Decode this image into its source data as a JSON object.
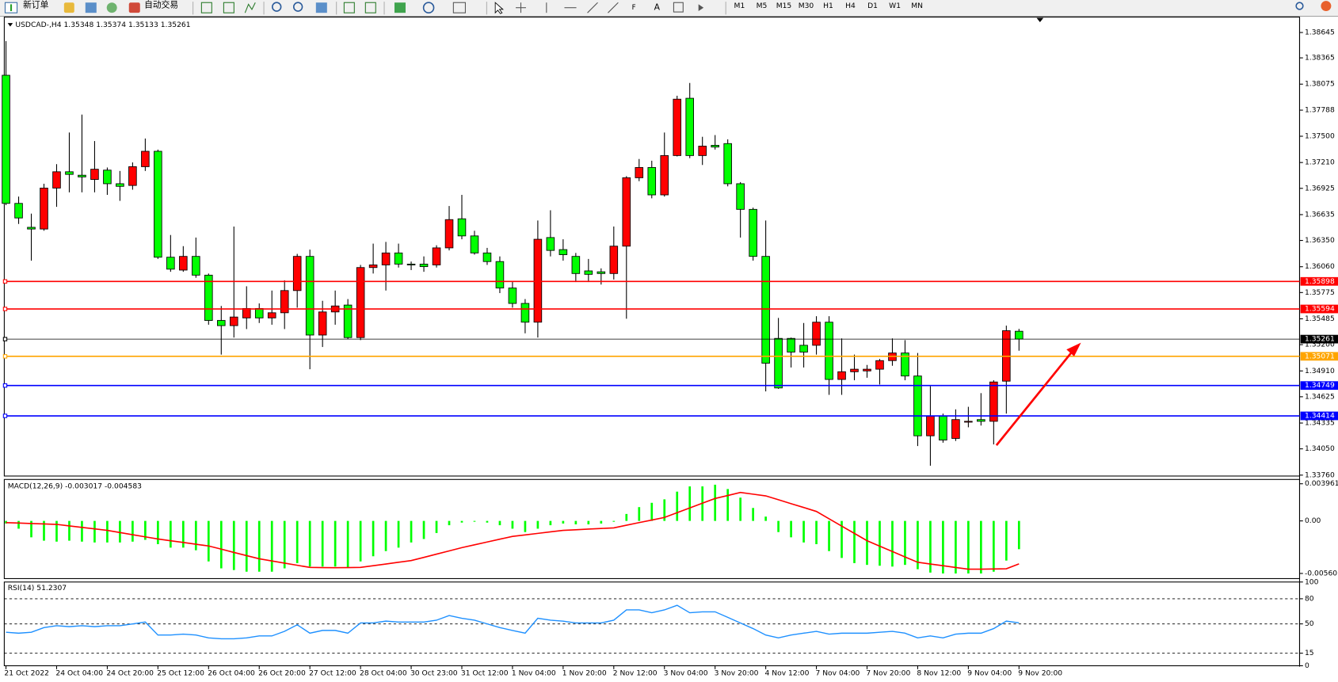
{
  "toolbar": {
    "new_order": "新订单",
    "auto_trading": "自动交易",
    "timeframes": [
      "M1",
      "M5",
      "M15",
      "M30",
      "H1",
      "H4",
      "D1",
      "W1",
      "MN"
    ]
  },
  "chart_data": [
    {
      "type": "candlestick",
      "title": "USDCAD-,H4 1.35348 1.35374 1.35133 1.35261",
      "categories": [
        "21 Oct 2022",
        null,
        null,
        null,
        "24 Oct 04:00",
        null,
        null,
        null,
        "24 Oct 20:00",
        null,
        null,
        null,
        "25 Oct 12:00",
        null,
        null,
        null,
        "26 Oct 04:00",
        null,
        null,
        null,
        "26 Oct 20:00",
        null,
        null,
        null,
        "27 Oct 12:00",
        null,
        null,
        null,
        "28 Oct 04:00",
        null,
        null,
        null,
        "30 Oct 23:00",
        null,
        null,
        null,
        "31 Oct 12:00",
        null,
        null,
        null,
        "1 Nov 04:00",
        null,
        null,
        null,
        "1 Nov 20:00",
        null,
        null,
        null,
        "2 Nov 12:00",
        null,
        null,
        null,
        "3 Nov 04:00",
        null,
        null,
        null,
        "3 Nov 20:00",
        null,
        null,
        null,
        "4 Nov 12:00",
        null,
        null,
        null,
        "7 Nov 04:00",
        null,
        null,
        null,
        "7 Nov 20:00",
        null,
        null,
        null,
        "8 Nov 12:00",
        null,
        null,
        null,
        "9 Nov 04:00",
        null,
        null,
        null,
        "9 Nov 20:00"
      ],
      "open": [
        1.38173,
        1.36759,
        1.36495,
        1.36476,
        1.36928,
        1.37108,
        1.3707,
        1.37023,
        1.37126,
        1.36976,
        1.36957,
        1.37164,
        1.37334,
        1.36165,
        1.36023,
        1.36174,
        1.35967,
        1.35467,
        1.3541,
        1.35495,
        1.35599,
        1.35495,
        1.35552,
        1.35797,
        1.36174,
        1.35306,
        1.35561,
        1.35637,
        1.35278,
        1.36051,
        1.3608,
        1.36212,
        1.36089,
        1.36089,
        1.3608,
        1.36268,
        1.36589,
        1.364,
        1.36212,
        1.36117,
        1.35825,
        1.35655,
        1.35448,
        1.36382,
        1.36249,
        1.36174,
        1.36014,
        1.36004,
        1.35985,
        1.36287,
        1.37042,
        1.37155,
        1.36853,
        1.37287,
        1.37919,
        1.37287,
        1.374,
        1.37419,
        1.36976,
        1.36693,
        1.36174,
        1.35269,
        1.35269,
        1.35193,
        1.35193,
        1.35448,
        1.34816,
        1.34901,
        1.3491,
        1.34929,
        1.35024,
        1.35108,
        1.34854,
        1.34194,
        1.34411,
        1.34165,
        1.34345,
        1.34373,
        1.34354,
        1.34797,
        1.35348
      ],
      "high": [
        1.3855,
        1.36834,
        1.36646,
        1.36976,
        1.37192,
        1.37541,
        1.37739,
        1.37447,
        1.37155,
        1.37117,
        1.37211,
        1.37475,
        1.37353,
        1.3641,
        1.36287,
        1.36382,
        1.35985,
        1.35627,
        1.36504,
        1.35844,
        1.35655,
        1.35797,
        1.3591,
        1.36202,
        1.36249,
        1.35684,
        1.35797,
        1.35703,
        1.3608,
        1.36315,
        1.36334,
        1.36315,
        1.36117,
        1.36174,
        1.36297,
        1.3673,
        1.36853,
        1.36457,
        1.36268,
        1.36174,
        1.35891,
        1.35703,
        1.3657,
        1.36683,
        1.36363,
        1.36212,
        1.36146,
        1.36042,
        1.36504,
        1.3706,
        1.37249,
        1.3723,
        1.37541,
        1.37947,
        1.38088,
        1.37494,
        1.37513,
        1.37466,
        1.36994,
        1.36712,
        1.3657,
        1.35495,
        1.35278,
        1.35439,
        1.35514,
        1.35514,
        1.35269,
        1.3509,
        1.34976,
        1.35042,
        1.35269,
        1.3525,
        1.35108,
        1.34741,
        1.34439,
        1.34486,
        1.34514,
        1.34665,
        1.34807,
        1.3541,
        1.35374
      ],
      "low": [
        1.3674,
        1.36532,
        1.36127,
        1.36457,
        1.36721,
        1.36881,
        1.36881,
        1.36881,
        1.36853,
        1.36787,
        1.3691,
        1.37117,
        1.36146,
        1.36004,
        1.36004,
        1.35938,
        1.3542,
        1.3509,
        1.35278,
        1.35372,
        1.35439,
        1.3542,
        1.35372,
        1.35608,
        1.34929,
        1.35174,
        1.3542,
        1.35259,
        1.3525,
        1.35985,
        1.35797,
        1.36051,
        1.36023,
        1.36004,
        1.36051,
        1.3624,
        1.36363,
        1.36193,
        1.3608,
        1.35769,
        1.35608,
        1.35325,
        1.35278,
        1.36174,
        1.36127,
        1.35891,
        1.35891,
        1.35863,
        1.35919,
        1.35486,
        1.37004,
        1.36815,
        1.36834,
        1.37277,
        1.37258,
        1.37183,
        1.37353,
        1.36947,
        1.36382,
        1.36127,
        1.34684,
        1.34712,
        1.34948,
        1.34948,
        1.3509,
        1.34646,
        1.34646,
        1.34807,
        1.34835,
        1.3476,
        1.34967,
        1.34807,
        1.34081,
        1.33864,
        1.34118,
        1.34137,
        1.34288,
        1.34307,
        1.34099,
        1.34439,
        1.35133
      ],
      "close": [
        1.36759,
        1.36598,
        1.36476,
        1.36928,
        1.37108,
        1.37079,
        1.37051,
        1.37136,
        1.36976,
        1.36947,
        1.37164,
        1.37334,
        1.36165,
        1.36033,
        1.36174,
        1.35967,
        1.35467,
        1.3541,
        1.35505,
        1.35599,
        1.35495,
        1.35552,
        1.35797,
        1.36174,
        1.35306,
        1.35561,
        1.35627,
        1.35278,
        1.36051,
        1.3608,
        1.36212,
        1.36089,
        1.3608,
        1.36061,
        1.36268,
        1.3658,
        1.364,
        1.36212,
        1.36117,
        1.35825,
        1.35655,
        1.35448,
        1.36363,
        1.3624,
        1.36193,
        1.35985,
        1.35976,
        1.35985,
        1.36287,
        1.37042,
        1.37155,
        1.36853,
        1.37287,
        1.37909,
        1.37287,
        1.37391,
        1.37381,
        1.36976,
        1.36693,
        1.36174,
        1.34995,
        1.34722,
        1.35118,
        1.35118,
        1.35448,
        1.34816,
        1.34901,
        1.34929,
        1.34929,
        1.35024,
        1.35108,
        1.34854,
        1.34194,
        1.34411,
        1.34147,
        1.34373,
        1.34354,
        1.34354,
        1.34788,
        1.35354,
        1.35261
      ],
      "up_color": "#ff0000",
      "down_color": "#00ff00",
      "ylim": [
        1.3375,
        1.38815
      ],
      "yticks": [
        {
          "value": 1.38645,
          "label": "1.38645"
        },
        {
          "value": 1.38365,
          "label": "1.38365"
        },
        {
          "value": 1.38075,
          "label": "1.38075"
        },
        {
          "value": 1.37788,
          "label": "1.37788"
        },
        {
          "value": 1.375,
          "label": "1.37500"
        },
        {
          "value": 1.3721,
          "label": "1.37210"
        },
        {
          "value": 1.36925,
          "label": "1.36925"
        },
        {
          "value": 1.36635,
          "label": "1.36635"
        },
        {
          "value": 1.3635,
          "label": "1.36350"
        },
        {
          "value": 1.3606,
          "label": "1.36060"
        },
        {
          "value": 1.35775,
          "label": "1.35775"
        },
        {
          "value": 1.35485,
          "label": "1.35485"
        },
        {
          "value": 1.352,
          "label": "1.35200"
        },
        {
          "value": 1.3491,
          "label": "1.34910"
        },
        {
          "value": 1.34625,
          "label": "1.34625"
        },
        {
          "value": 1.34335,
          "label": "1.34335"
        },
        {
          "value": 1.3405,
          "label": "1.34050"
        },
        {
          "value": 1.3376,
          "label": "1.33760"
        }
      ],
      "levels": [
        {
          "value": 1.35898,
          "color": "#ff0000"
        },
        {
          "value": 1.35594,
          "color": "#ff0000"
        },
        {
          "value": 1.35261,
          "color": "#000000"
        },
        {
          "value": 1.35071,
          "color": "#ffa500"
        },
        {
          "value": 1.34749,
          "color": "#0000ff"
        },
        {
          "value": 1.34414,
          "color": "#0000ff"
        }
      ]
    },
    {
      "type": "macd",
      "title": "MACD(12,26,9) -0.003017 -0.004583",
      "histogram": [
        -0.00028,
        -0.00083,
        -0.00175,
        -0.00211,
        -0.00221,
        -0.00211,
        -0.00221,
        -0.0023,
        -0.0023,
        -0.0023,
        -0.00221,
        -0.00202,
        -0.00248,
        -0.00285,
        -0.00285,
        -0.00313,
        -0.00432,
        -0.00506,
        -0.00524,
        -0.00542,
        -0.00542,
        -0.00542,
        -0.00506,
        -0.0045,
        -0.00487,
        -0.00487,
        -0.00487,
        -0.00496,
        -0.00432,
        -0.00377,
        -0.00322,
        -0.00285,
        -0.0023,
        -0.00193,
        -0.00129,
        -0.00046,
        -0.00018,
        -9e-05,
        -0.00018,
        -0.00046,
        -0.00083,
        -0.00119,
        -0.00083,
        -0.00046,
        -0.00028,
        -0.00037,
        -0.00037,
        -0.00028,
        -9e-05,
        0.00074,
        0.00147,
        0.00193,
        0.0023,
        0.00312,
        0.00368,
        0.00368,
        0.00386,
        0.0034,
        0.00248,
        0.00138,
        0.00046,
        -0.00119,
        -0.00175,
        -0.0023,
        -0.00248,
        -0.00322,
        -0.00395,
        -0.0045,
        -0.00469,
        -0.00478,
        -0.00487,
        -0.00469,
        -0.00515,
        -0.00551,
        -0.00561,
        -0.00561,
        -0.00561,
        -0.00561,
        -0.00542,
        -0.00423,
        -0.003017
      ],
      "histogram_color": "#00ff00",
      "signal": [
        -0.00018,
        -0.00023,
        -0.00028,
        -0.00032,
        -0.00037,
        -0.00053,
        -0.00069,
        -0.00085,
        -0.00101,
        -0.00124,
        -0.00147,
        -0.0017,
        -0.00193,
        -0.00212,
        -0.0023,
        -0.00249,
        -0.00267,
        -0.00301,
        -0.00336,
        -0.0037,
        -0.00404,
        -0.00427,
        -0.0045,
        -0.00473,
        -0.00496,
        -0.00498,
        -0.00499,
        -0.00498,
        -0.00496,
        -0.00478,
        -0.0046,
        -0.00441,
        -0.00423,
        -0.00389,
        -0.00354,
        -0.0032,
        -0.00285,
        -0.00255,
        -0.00225,
        -0.00195,
        -0.00165,
        -0.00149,
        -0.00133,
        -0.00117,
        -0.00101,
        -0.00094,
        -0.00087,
        -0.00081,
        -0.00074,
        -0.00046,
        -0.00018,
        9e-05,
        0.00037,
        0.00088,
        0.00138,
        0.00189,
        0.00239,
        0.00271,
        0.00303,
        0.00285,
        0.00267,
        0.00226,
        0.00184,
        0.00143,
        0.00101,
        0.00023,
        -0.00055,
        -0.00133,
        -0.00211,
        -0.00269,
        -0.00326,
        -0.00384,
        -0.00441,
        -0.0046,
        -0.00478,
        -0.00497,
        -0.00515,
        -0.00515,
        -0.00513,
        -0.0051,
        -0.004583
      ],
      "signal_color": "#ff0000",
      "ylim": [
        -0.00615,
        0.00442
      ],
      "yticks": [
        0.003961,
        {
          "value": 0,
          "label": "0.00"
        },
        -0.005601
      ]
    },
    {
      "type": "line",
      "title": "RSI(14) 51.2307",
      "values": [
        40.0,
        38.9,
        40.0,
        45.6,
        47.8,
        46.7,
        47.8,
        46.7,
        47.8,
        47.8,
        50.0,
        52.2,
        36.7,
        36.7,
        37.8,
        36.7,
        33.3,
        32.2,
        32.2,
        33.3,
        35.6,
        35.6,
        41.1,
        48.9,
        38.9,
        42.2,
        42.2,
        38.9,
        51.1,
        51.1,
        53.3,
        52.2,
        52.2,
        52.2,
        54.4,
        60.0,
        56.7,
        54.4,
        50.0,
        45.6,
        42.2,
        38.9,
        56.7,
        54.4,
        53.3,
        51.1,
        51.1,
        51.1,
        54.4,
        66.7,
        66.7,
        63.3,
        66.7,
        72.2,
        63.3,
        64.4,
        64.4,
        57.8,
        51.1,
        44.4,
        36.7,
        33.3,
        36.7,
        38.9,
        41.1,
        37.8,
        38.9,
        38.9,
        38.9,
        40.0,
        41.1,
        38.9,
        33.3,
        35.6,
        33.3,
        37.8,
        38.9,
        38.9,
        44.4,
        53.3,
        51.2307
      ],
      "color": "#1e90ff",
      "ylim": [
        0,
        100
      ],
      "yticks": [
        100,
        80,
        50,
        15,
        0
      ],
      "levels": [
        80,
        50,
        15
      ]
    }
  ]
}
